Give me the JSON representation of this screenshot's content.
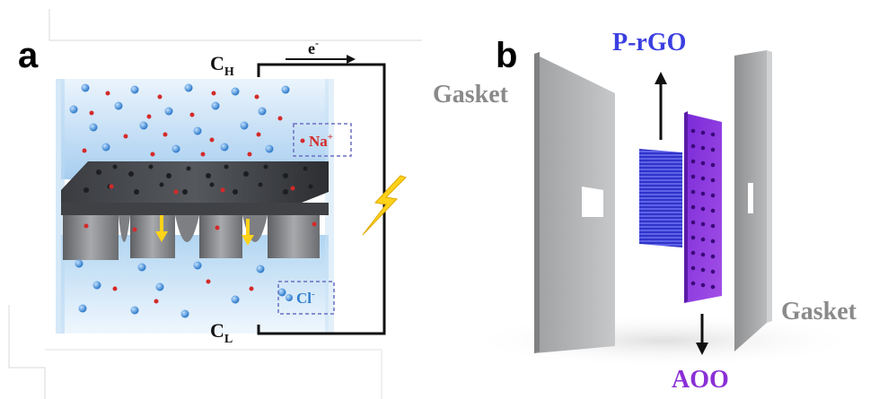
{
  "panel_a": {
    "letter": "a",
    "electron": "e",
    "electron_sup": "-",
    "ch_main": "C",
    "ch_sub": "H",
    "cl_main": "C",
    "cl_sub": "L",
    "na_label": "Na",
    "na_sup": "+",
    "cl_ion_label": "Cl",
    "cl_ion_sup": "-",
    "colors": {
      "cation": "#d42a2a",
      "anion": "#2f7fcf",
      "membrane": "#2d2f33",
      "bolt": "#ffd21a",
      "box": "#6b6fc2"
    }
  },
  "panel_b": {
    "letter": "b",
    "prgo_label": "P-rGO",
    "aoo_label": "AOO",
    "gasket_left": "Gasket",
    "gasket_right": "Gasket",
    "colors": {
      "prgo": "#3b3fe0",
      "aoo": "#8a2fd6",
      "gasket_text": "#8a8a8a"
    }
  }
}
